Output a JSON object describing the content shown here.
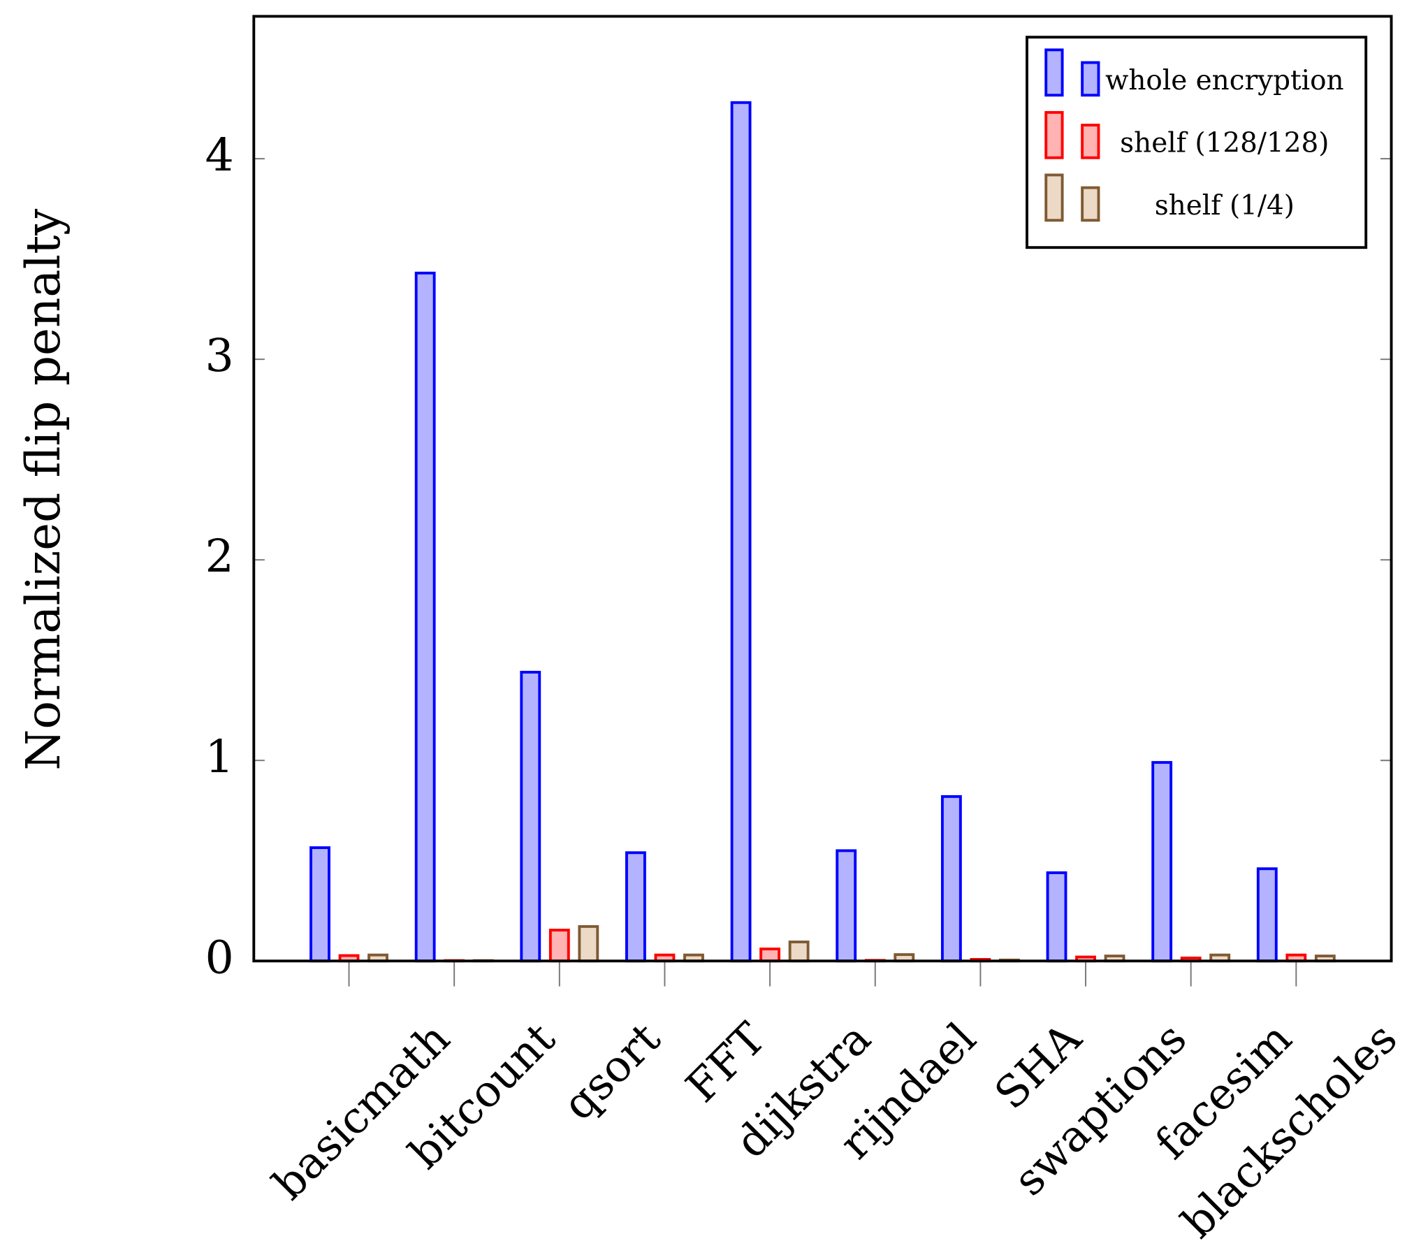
{
  "chart_data": {
    "type": "bar",
    "y_label": "Normalized flip penalty",
    "categories": [
      "basicmath",
      "bitcount",
      "qsort",
      "FFT",
      "dijkstra",
      "rijndael",
      "SHA",
      "swaptions",
      "facesim",
      "blackscholes"
    ],
    "series": [
      {
        "name": "whole encryption",
        "color": "#0000ff",
        "fill": "#b3b3ff",
        "values": [
          0.565,
          3.43,
          1.44,
          0.54,
          4.28,
          0.55,
          0.82,
          0.44,
          0.99,
          0.46
        ]
      },
      {
        "name": "shelf (128/128)",
        "color": "#ff0000",
        "fill": "#ffb3b3",
        "values": [
          0.027,
          0.002,
          0.154,
          0.03,
          0.06,
          0.003,
          0.008,
          0.02,
          0.015,
          0.03
        ]
      },
      {
        "name": "shelf (1/4)",
        "color": "#7f5a33",
        "fill": "#ecd9c6",
        "values": [
          0.03,
          0.002,
          0.172,
          0.03,
          0.095,
          0.032,
          0.005,
          0.025,
          0.03,
          0.025
        ]
      }
    ],
    "ylim": [
      0,
      4.71
    ],
    "yticks": [
      0,
      1,
      2,
      3,
      4
    ],
    "legend": "top-right"
  }
}
